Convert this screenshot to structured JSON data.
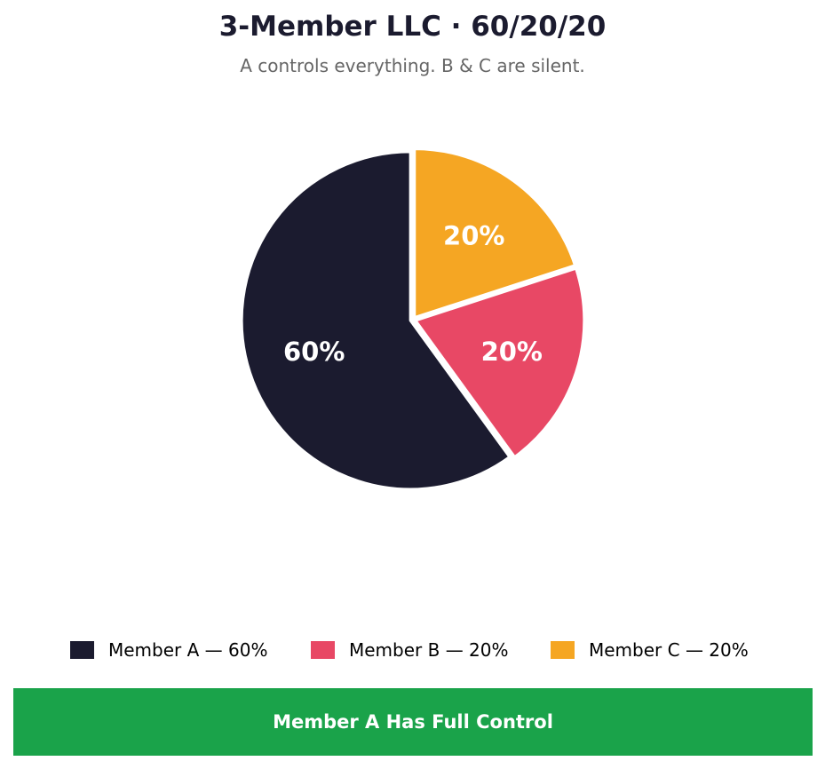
{
  "header": {
    "title": "3-Member LLC · 60/20/20",
    "subtitle": "A controls everything. B & C are silent."
  },
  "chart_data": {
    "type": "pie",
    "title": "3-Member LLC · 60/20/20",
    "subtitle": "A controls everything. B & C are silent.",
    "start_angle": "12 o'clock",
    "direction": "counterclockwise",
    "slices": [
      {
        "name": "Member A",
        "value": 60,
        "label": "60%",
        "color": "#1b1b2f",
        "legend": "Member A — 60%"
      },
      {
        "name": "Member B",
        "value": 20,
        "label": "20%",
        "color": "#e84865",
        "legend": "Member B — 20%"
      },
      {
        "name": "Member C",
        "value": 20,
        "label": "20%",
        "color": "#f5a623",
        "legend": "Member C — 20%"
      }
    ],
    "legend_placement": "bottom"
  },
  "banner": {
    "text": "Member A Has Full Control",
    "color": "#1aa34a"
  }
}
